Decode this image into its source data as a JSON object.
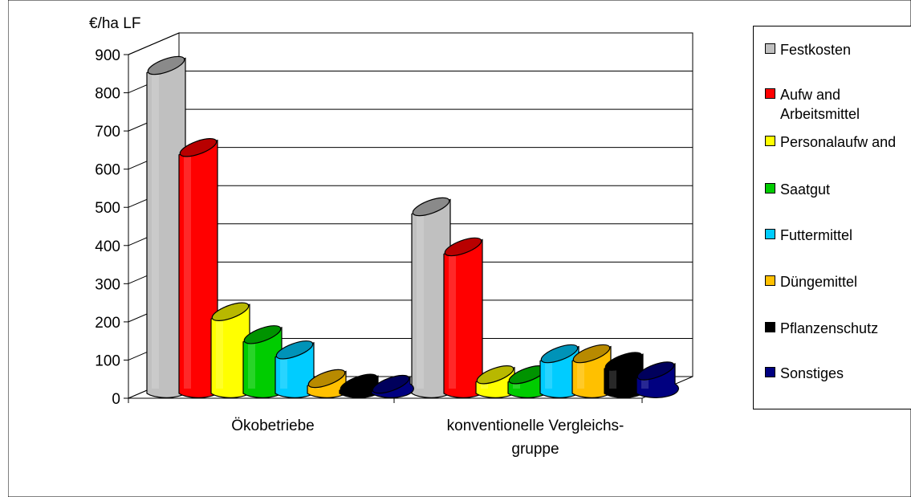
{
  "chart_data": {
    "type": "bar",
    "unit_label": "€/ha LF",
    "ylim": [
      0,
      900
    ],
    "y_ticks": [
      "0",
      "100",
      "200",
      "300",
      "400",
      "500",
      "600",
      "700",
      "800",
      "900"
    ],
    "grid": true,
    "legend_position": "right",
    "categories": [
      {
        "lines": [
          "Ökobetriebe"
        ]
      },
      {
        "lines": [
          "konventionelle Vergleichs-",
          "gruppe"
        ]
      }
    ],
    "series": [
      {
        "name": "Festkosten",
        "color": "#c0c0c0",
        "values": [
          840,
          470
        ]
      },
      {
        "name": "Aufw and\nArbeitsmittel",
        "color": "#ff0000",
        "values": [
          625,
          365
        ]
      },
      {
        "name": "Personalaufw and",
        "color": "#ffff00",
        "values": [
          195,
          30
        ]
      },
      {
        "name": "Saatgut",
        "color": "#00cc00",
        "values": [
          135,
          30
        ]
      },
      {
        "name": "Futtermittel",
        "color": "#00ccff",
        "values": [
          95,
          85
        ]
      },
      {
        "name": "Düngemittel",
        "color": "#ffc000",
        "values": [
          20,
          85
        ]
      },
      {
        "name": "Pflanzenschutz",
        "color": "#000000",
        "values": [
          8,
          65
        ]
      },
      {
        "name": "Sonstiges",
        "color": "#000080",
        "values": [
          5,
          40
        ]
      }
    ]
  }
}
